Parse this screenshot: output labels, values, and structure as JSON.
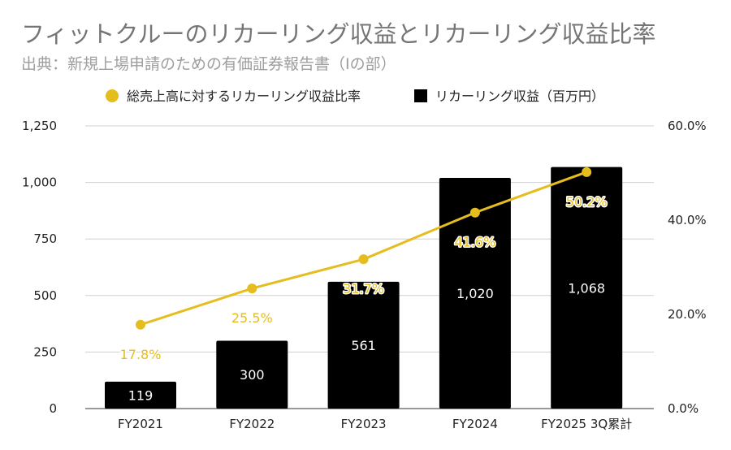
{
  "chart_data": {
    "type": "bar+line",
    "title": "フィットクルーのリカーリング収益とリカーリング収益比率",
    "subtitle": "出典：新規上場申請のための有価証券報告書（Iの部）",
    "categories": [
      "FY2021",
      "FY2022",
      "FY2023",
      "FY2024",
      "FY2025 3Q累計"
    ],
    "series": [
      {
        "name": "総売上高に対するリカーリング収益比率",
        "type": "line",
        "axis": "right",
        "values": [
          17.8,
          25.5,
          31.7,
          41.6,
          50.2
        ],
        "labels": [
          "17.8%",
          "25.5%",
          "31.7%",
          "41.6%",
          "50.2%"
        ],
        "color": "#E5BD1F"
      },
      {
        "name": "リカーリング収益（百万円）",
        "type": "bar",
        "axis": "left",
        "values": [
          119,
          300,
          561,
          1020,
          1068
        ],
        "labels": [
          "119",
          "300",
          "561",
          "1,020",
          "1,068"
        ],
        "color": "#000000"
      }
    ],
    "ylim": [
      0,
      1250
    ],
    "yticks": [
      "0",
      "250",
      "500",
      "750",
      "1,000",
      "1,250"
    ],
    "y2lim": [
      0,
      60
    ],
    "y2ticks": [
      "0.0%",
      "20.0%",
      "40.0%",
      "60.0%"
    ],
    "grid": true,
    "legend": "top-center"
  }
}
